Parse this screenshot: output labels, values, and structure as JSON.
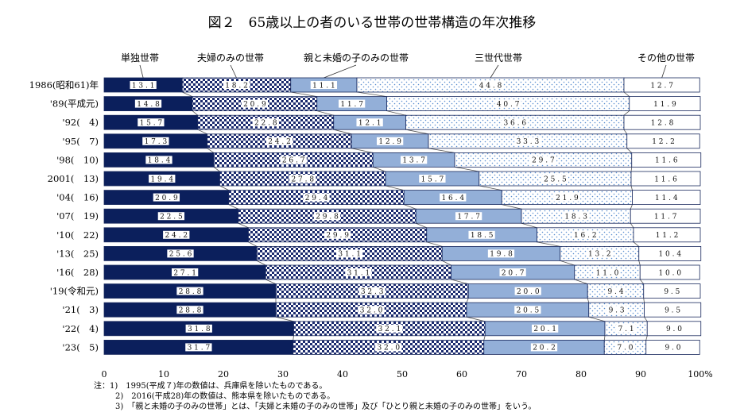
{
  "chart_data": {
    "type": "bar",
    "orientation": "horizontal",
    "stacked": true,
    "title": "図２　65歳以上の者のいる世帯の世帯構造の年次推移",
    "categories": [
      "1986(昭和61)年",
      "'89(平成元)",
      "'92(　4)",
      "'95(　7)",
      "'98(　10)",
      "2001(　13)",
      "'04(　16)",
      "'07(　19)",
      "'10(　22)",
      "'13(　25)",
      "'16(　28)",
      "'19(令和元)",
      "'21(　3)",
      "'22(　4)",
      "'23(　5)"
    ],
    "series": [
      {
        "name": "単独世帯",
        "values": [
          13.1,
          14.8,
          15.7,
          17.3,
          18.4,
          19.4,
          20.9,
          22.5,
          24.2,
          25.6,
          27.1,
          28.8,
          28.8,
          31.8,
          31.7
        ]
      },
      {
        "name": "夫婦のみの世帯",
        "values": [
          18.2,
          20.9,
          22.8,
          24.2,
          26.7,
          27.8,
          29.4,
          29.8,
          29.9,
          31.1,
          31.1,
          32.3,
          32.0,
          32.1,
          32.0
        ]
      },
      {
        "name": "親と未婚の子のみの世帯",
        "values": [
          11.1,
          11.7,
          12.1,
          12.9,
          13.7,
          15.7,
          16.4,
          17.7,
          18.5,
          19.8,
          20.7,
          20.0,
          20.5,
          20.1,
          20.2
        ]
      },
      {
        "name": "三世代世帯",
        "values": [
          44.8,
          40.7,
          36.6,
          33.3,
          29.7,
          25.5,
          21.9,
          18.3,
          16.2,
          13.2,
          11.0,
          9.4,
          9.3,
          7.1,
          7.0
        ]
      },
      {
        "name": "その他の世帯",
        "values": [
          12.7,
          11.9,
          12.8,
          12.2,
          11.6,
          11.6,
          11.4,
          11.7,
          11.2,
          10.4,
          10.0,
          9.5,
          9.5,
          9.0,
          9.0
        ]
      }
    ],
    "x_ticks": [
      "0",
      "10",
      "20",
      "30",
      "40",
      "50",
      "60",
      "70",
      "80",
      "90",
      "100%"
    ],
    "xlim": [
      0,
      100
    ],
    "notes": [
      "注：1)　1995(平成７)年の数値は、兵庫県を除いたものである。",
      "2)　2016(平成28)年の数値は、熊本県を除いたものである。",
      "3)　「親と未婚の子のみの世帯」とは、「夫婦と未婚の子のみの世帯」及び「ひとり親と未婚の子のみの世帯」をいう。"
    ],
    "colors": {
      "single": "#0b1f5c",
      "couple_fg": "#1a2a6e",
      "parent_child": "#93afd8",
      "three_gen_dots": "#5b8fd0",
      "other": "#ffffff",
      "border": "#1a2a5e",
      "connector": "#555555"
    }
  }
}
